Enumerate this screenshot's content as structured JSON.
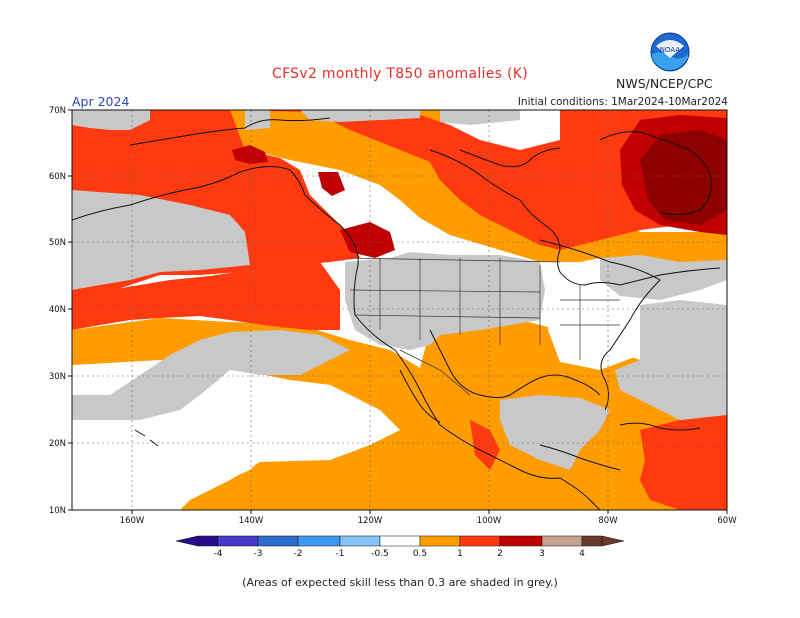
{
  "header": {
    "title": "CFSv2 monthly T850 anomalies (K)",
    "month": "Apr 2024",
    "initial_conditions": "Initial conditions: 1Mar2024-10Mar2024",
    "agency": "NWS/NCEP/CPC",
    "logo_text": "NOAA"
  },
  "map": {
    "lat_labels": [
      "70N",
      "60N",
      "50N",
      "40N",
      "30N",
      "20N",
      "10N"
    ],
    "lon_labels": [
      "160W",
      "140W",
      "120W",
      "100W",
      "80W",
      "60W"
    ]
  },
  "legend": {
    "labels": [
      "-4",
      "-3",
      "-2",
      "-1",
      "-0.5",
      "0.5",
      "1",
      "2",
      "3",
      "4"
    ],
    "colors": [
      "#2a0a8a",
      "#4638c8",
      "#2a6ed0",
      "#3c98f0",
      "#86c4f8",
      "#ffffff",
      "#ff9d00",
      "#ff3a10",
      "#c00000",
      "#c8a090",
      "#6a3a2a"
    ]
  },
  "colors": {
    "grey": "#c8c8c8",
    "orange": "#ff9d00",
    "red_orange": "#ff3a10",
    "dark_red": "#c00000",
    "very_dark_red": "#8e0000"
  },
  "caption": "(Areas of expected skill less than 0.3 are shaded in grey.)"
}
